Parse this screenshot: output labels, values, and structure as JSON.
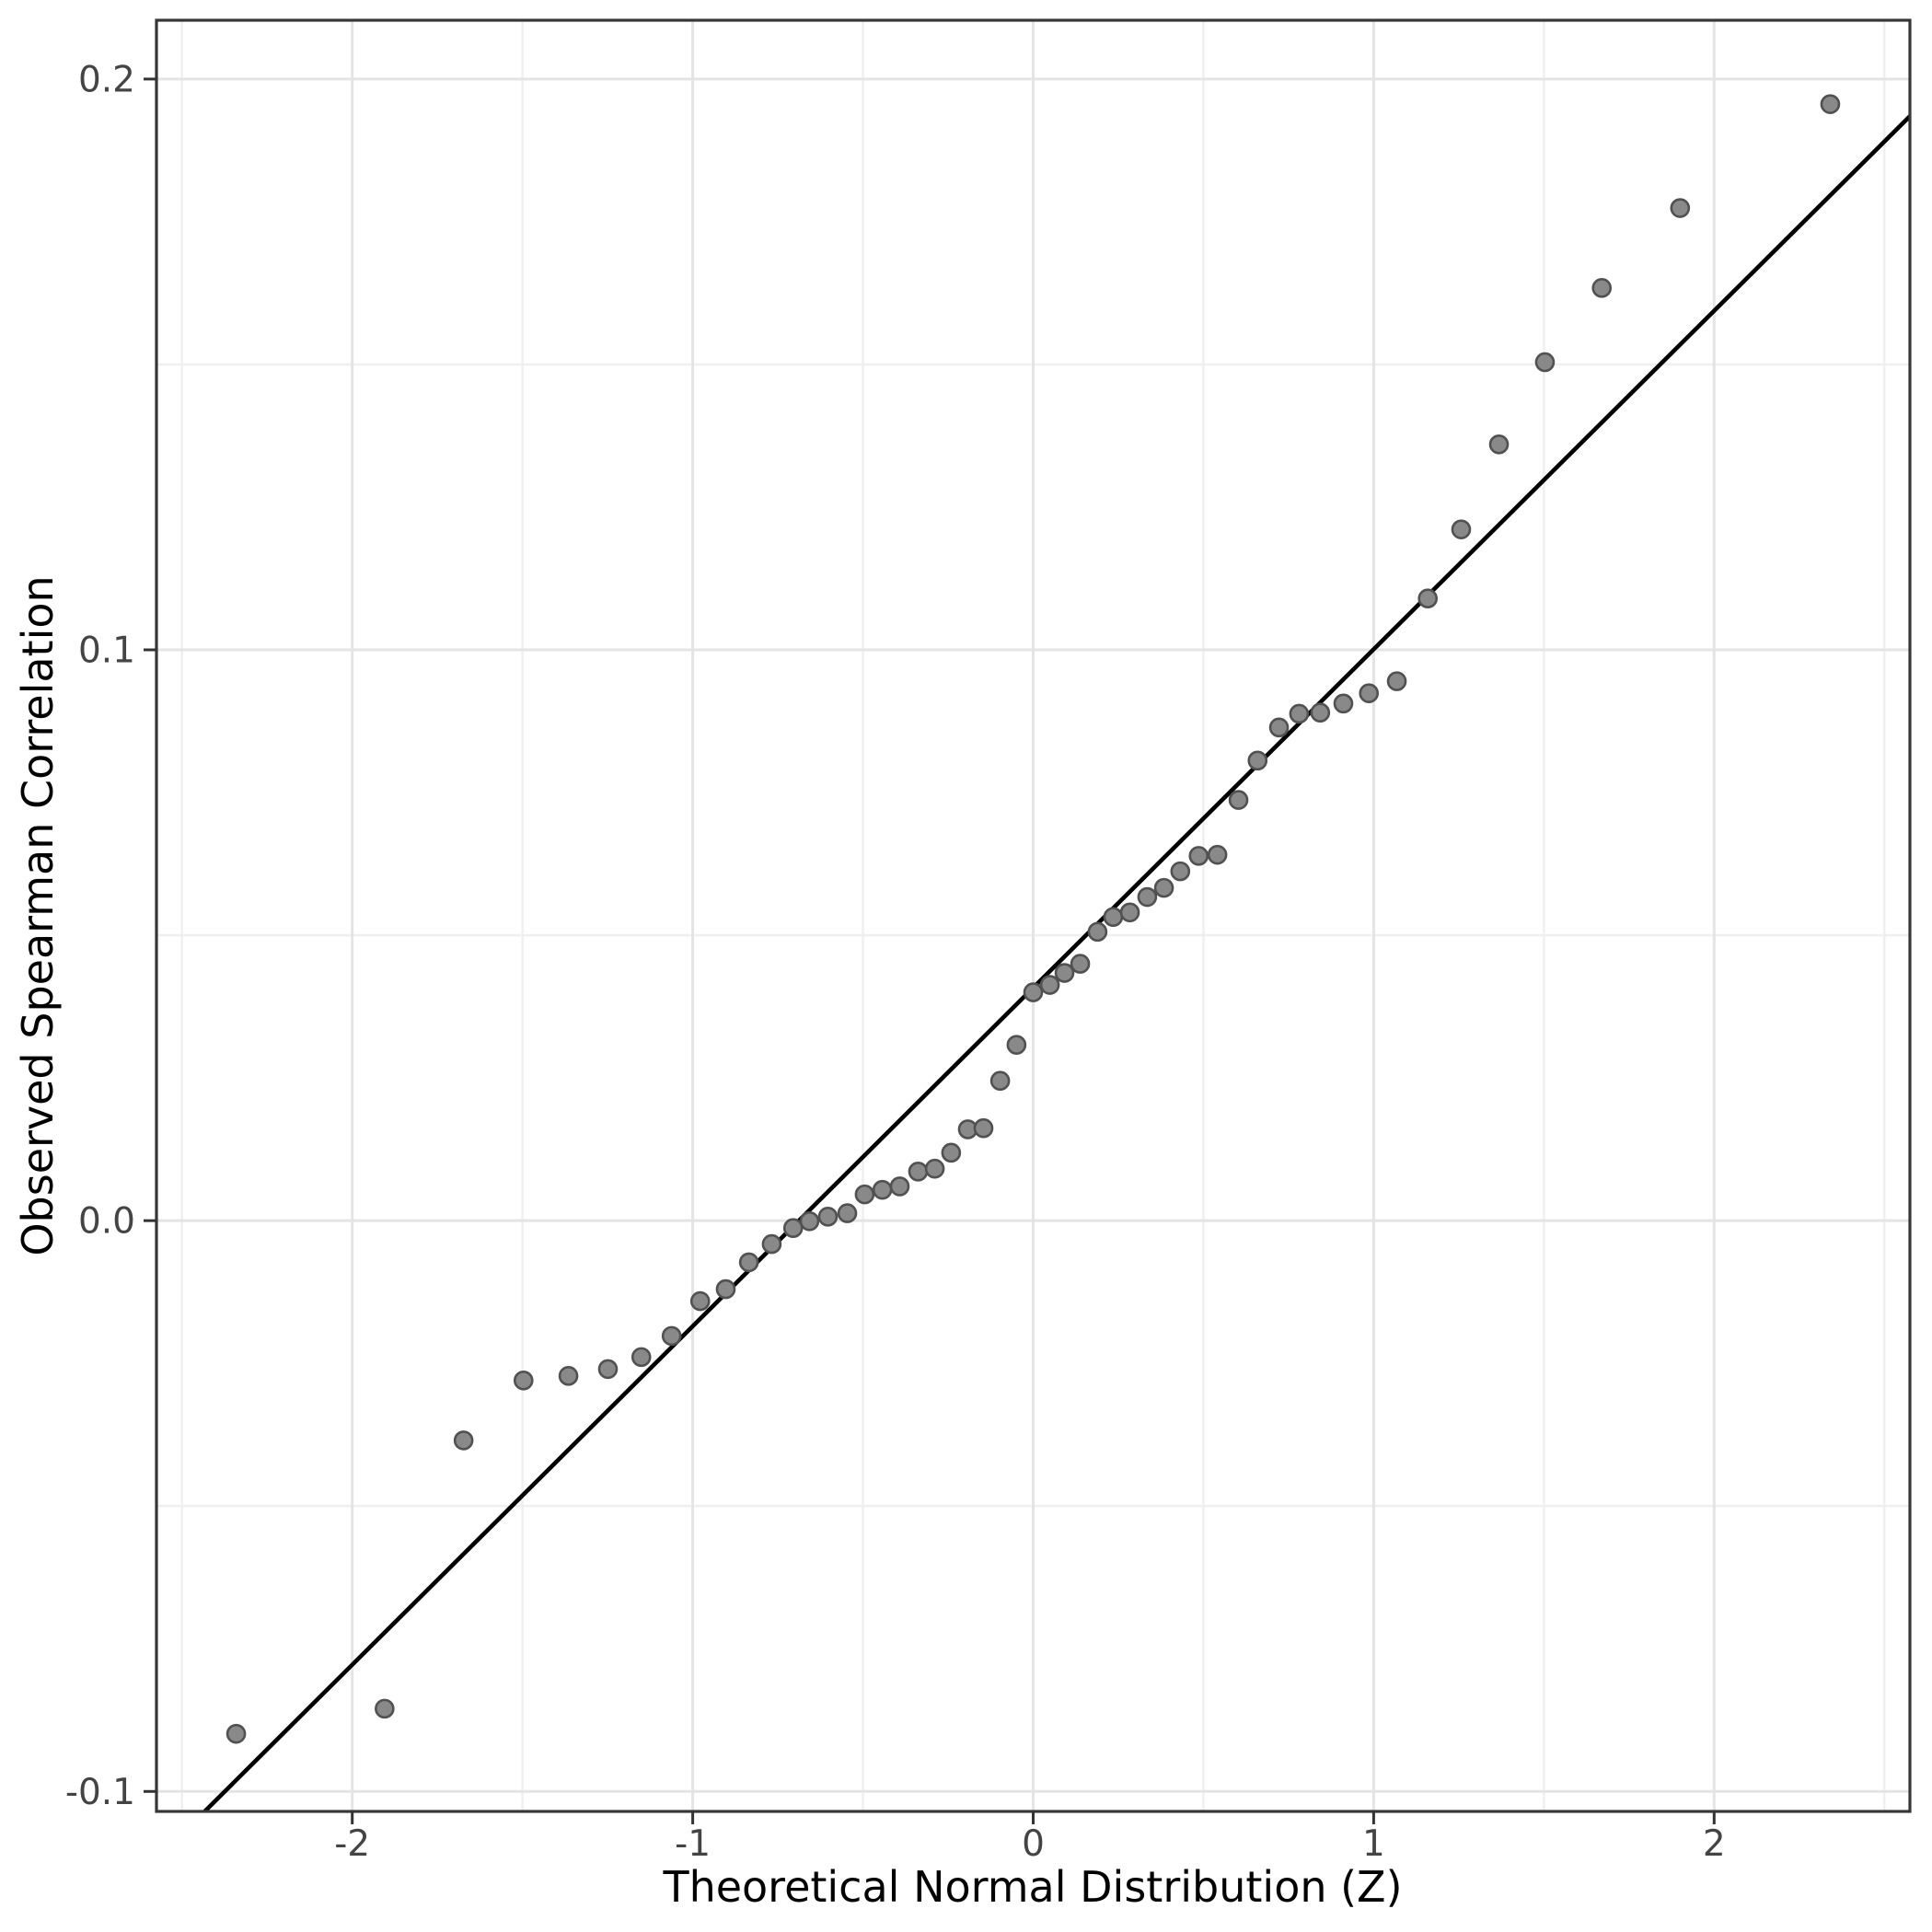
{
  "chart_data": {
    "type": "scatter",
    "title": "",
    "xlabel": "Theoretical Normal Distribution (Z)",
    "ylabel": "Observed Spearman Correlation",
    "xlim": [
      -2.575,
      2.575
    ],
    "ylim": [
      -0.1035,
      0.2103
    ],
    "grid": "major+minor",
    "legend_position": "none",
    "x_ticks": [
      {
        "value": -2,
        "label": "-2"
      },
      {
        "value": -1,
        "label": "-1"
      },
      {
        "value": 0,
        "label": "0"
      },
      {
        "value": 1,
        "label": "1"
      },
      {
        "value": 2,
        "label": "2"
      }
    ],
    "y_ticks": [
      {
        "value": 0.2,
        "label": "0.2"
      },
      {
        "value": 0.1,
        "label": "0.1"
      },
      {
        "value": 0.0,
        "label": "0.0"
      },
      {
        "value": -0.1,
        "label": "-0.1"
      }
    ],
    "x_minor_ticks": [
      -2.5,
      -1.5,
      -0.5,
      0.5,
      1.5,
      2.5
    ],
    "y_minor_ticks": [
      0.15,
      0.05,
      -0.05
    ],
    "n_points": 53,
    "points": {
      "z": [
        -2.341,
        -1.905,
        -1.673,
        -1.497,
        -1.365,
        -1.249,
        -1.151,
        -1.062,
        -0.978,
        -0.903,
        -0.835,
        -0.768,
        -0.705,
        -0.657,
        -0.603,
        -0.546,
        -0.495,
        -0.443,
        -0.392,
        -0.338,
        -0.289,
        -0.241,
        -0.192,
        -0.146,
        -0.097,
        -0.049,
        0.0,
        0.049,
        0.092,
        0.138,
        0.189,
        0.235,
        0.284,
        0.335,
        0.384,
        0.432,
        0.486,
        0.541,
        0.603,
        0.659,
        0.722,
        0.781,
        0.843,
        0.911,
        0.986,
        1.068,
        1.159,
        1.257,
        1.368,
        1.503,
        1.67,
        1.9,
        2.341
      ],
      "rho": [
        -0.0899,
        -0.0855,
        -0.0385,
        -0.028,
        -0.0272,
        -0.026,
        -0.0239,
        -0.0202,
        -0.0141,
        -0.012,
        -0.0073,
        -0.0041,
        -0.0013,
        -0.0001,
        0.0007,
        0.0013,
        0.0046,
        0.0054,
        0.006,
        0.0086,
        0.0091,
        0.0119,
        0.016,
        0.0162,
        0.0245,
        0.0308,
        0.04,
        0.0413,
        0.0434,
        0.045,
        0.0506,
        0.0532,
        0.054,
        0.0567,
        0.0583,
        0.0612,
        0.0639,
        0.0641,
        0.0737,
        0.0806,
        0.0864,
        0.0888,
        0.089,
        0.0906,
        0.0924,
        0.0945,
        0.109,
        0.1211,
        0.136,
        0.1504,
        0.1634,
        0.1774,
        0.1956
      ]
    },
    "reference_line": {
      "slope": 0.0593,
      "intercept": 0.0408
    }
  },
  "style": {
    "background": "#ffffff",
    "panel_border": "#373737",
    "grid_major": "#e4e4e4",
    "grid_minor": "#efefef",
    "point_fill": "#898989",
    "point_stroke": "#515151",
    "ref_line_color": "#000000",
    "tick_color": "#333333",
    "tick_label_color": "#444444",
    "axis_title_color": "#000000"
  }
}
